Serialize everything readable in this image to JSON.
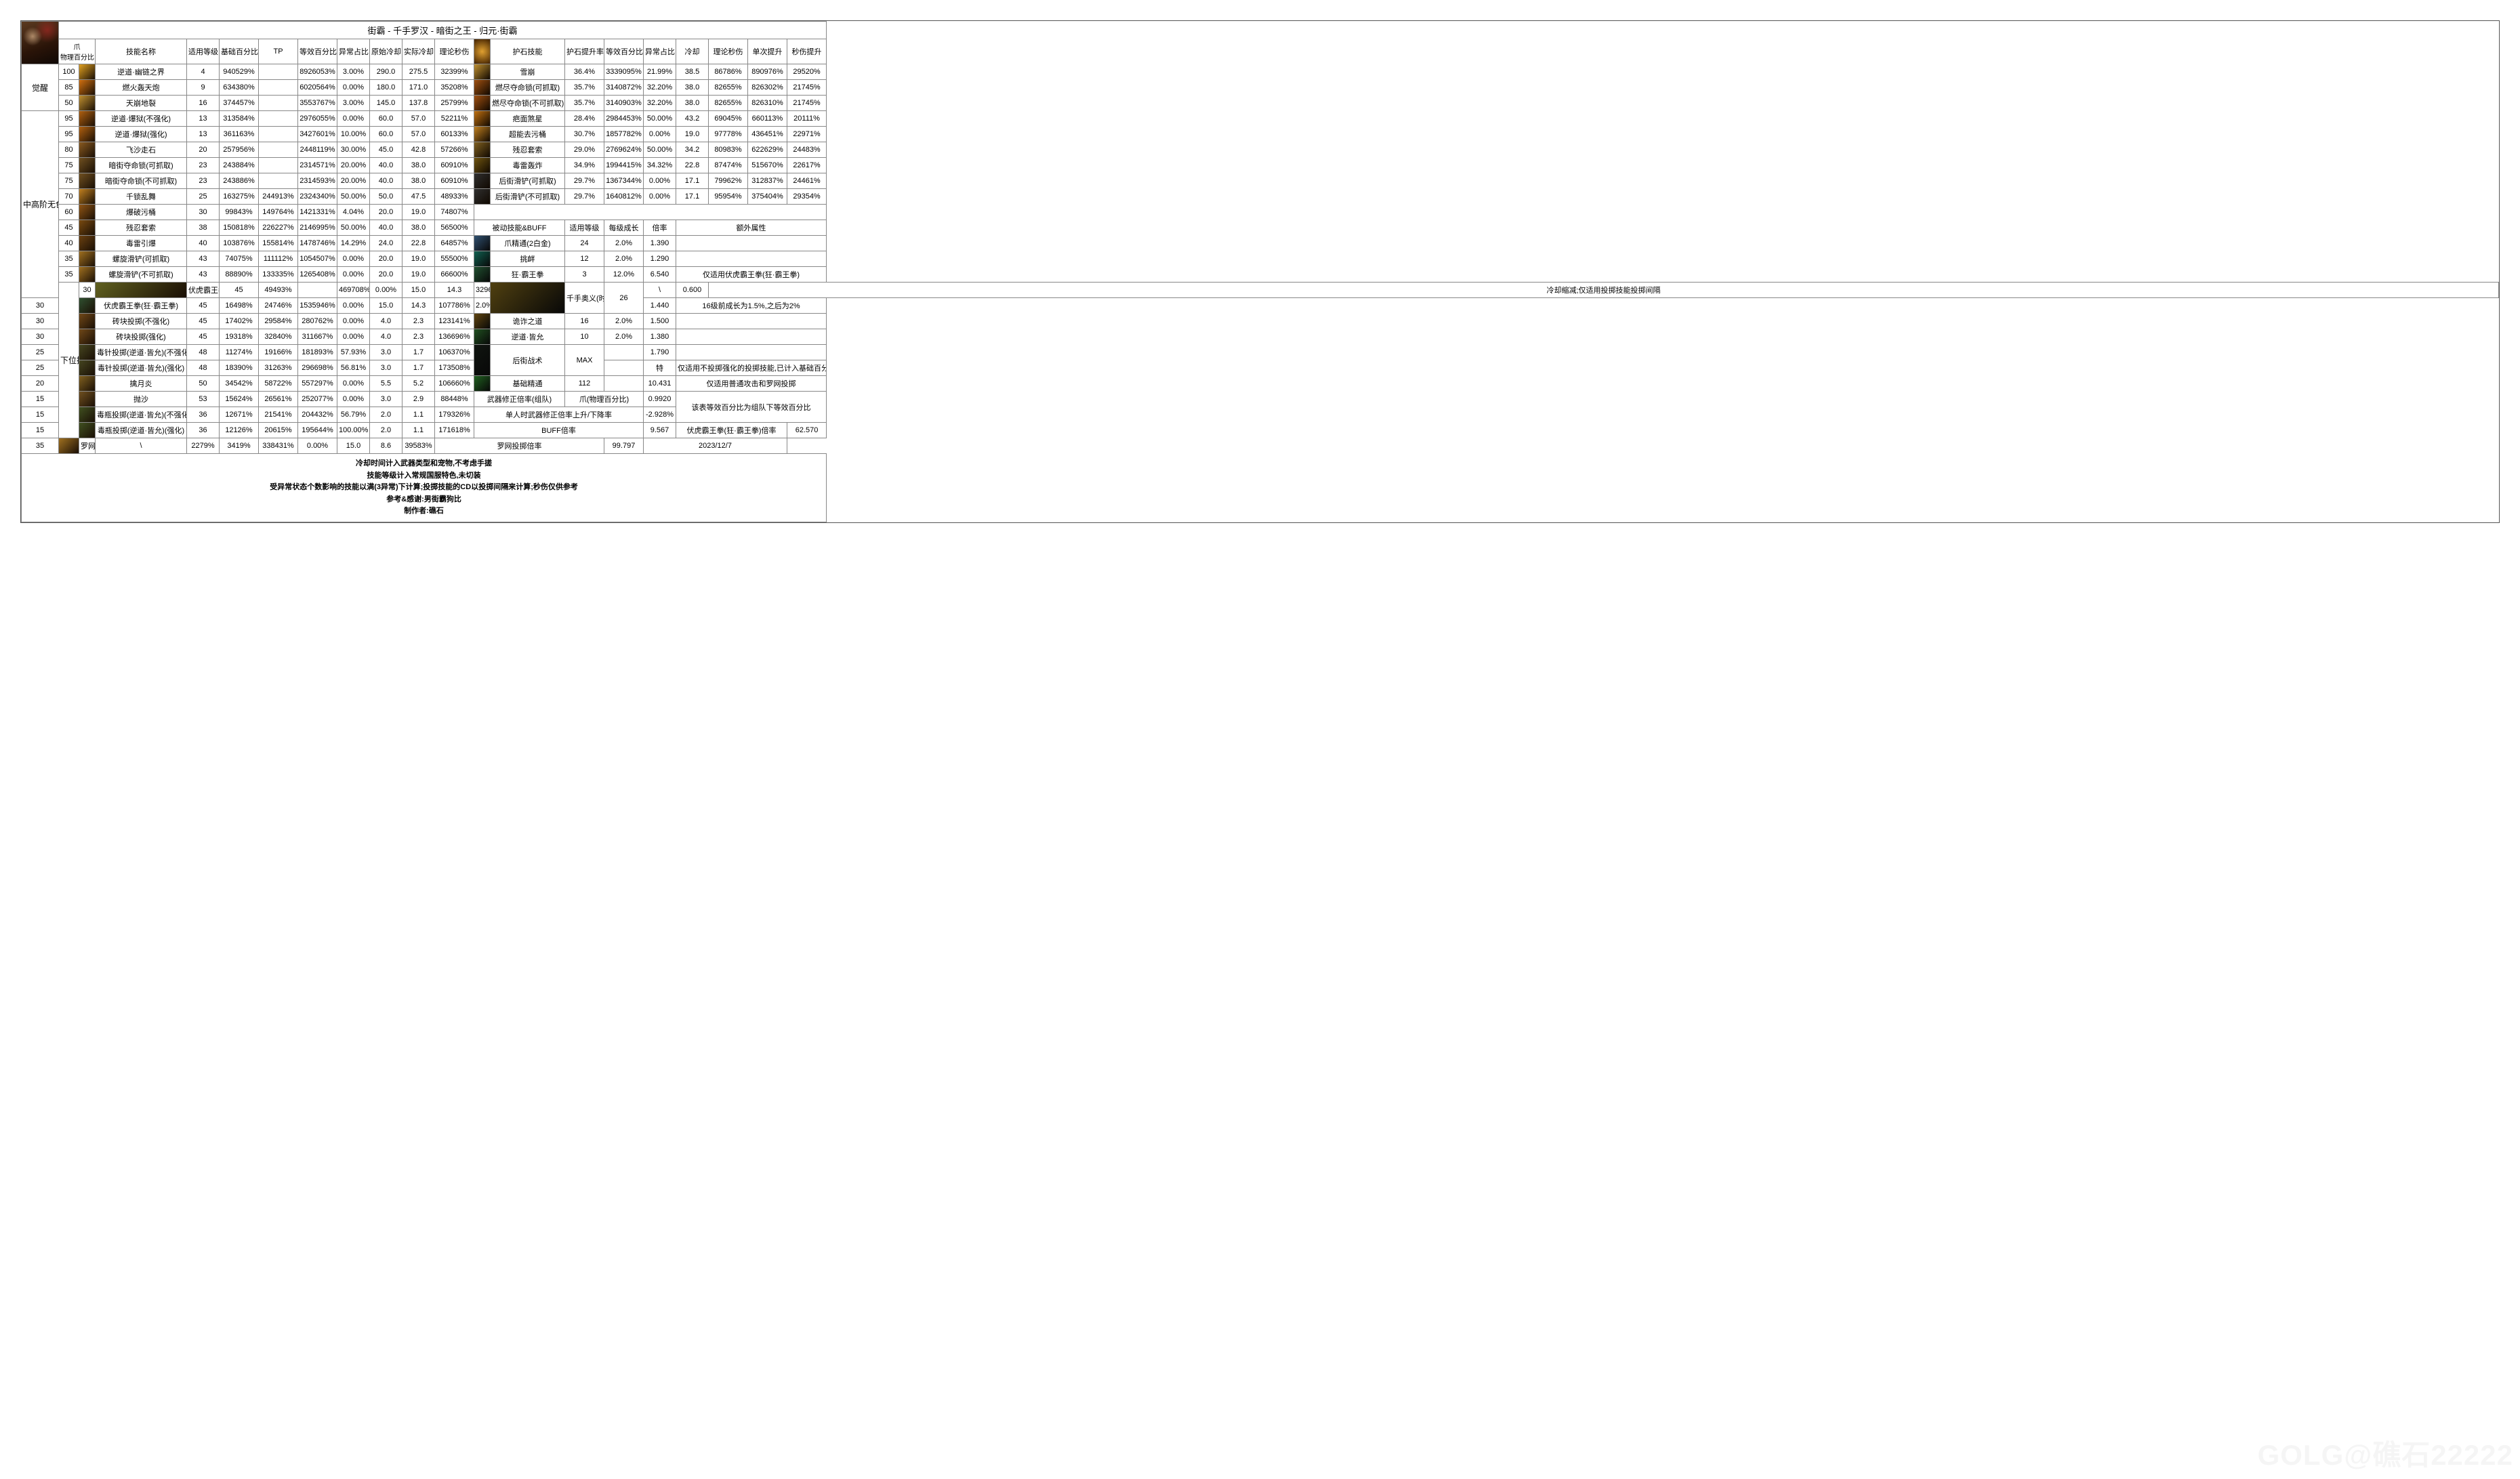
{
  "title": "街霸 - 千手罗汉 - 暗街之王 - 归元·街霸",
  "h_left": {
    "claw": "爪",
    "phys": "物理百分比",
    "name": "技能名称",
    "lvl": "适用等级",
    "base": "基础百分比",
    "tp": "TP",
    "eff": "等效百分比",
    "abn": "异常占比",
    "ocd": "原始冷却",
    "acd": "实际冷却",
    "dps": "理论秒伤"
  },
  "h_right": {
    "pname": "护石技能",
    "boost": "护石提升率",
    "eff": "等效百分比",
    "abn": "异常占比",
    "cd": "冷却",
    "dps": "理论秒伤",
    "single": "单次提升",
    "dpsup": "秒伤提升"
  },
  "cats": {
    "awaken": "觉醒",
    "mid": "中高阶无色",
    "low": "下位技能"
  },
  "L": [
    {
      "cat": "awaken",
      "span": 3,
      "lv": "100",
      "ic": "#e0a020",
      "name": "逆道·幽链之界",
      "lvl": "4",
      "base": "940529%",
      "tp": "",
      "eff": "8926053%",
      "abn": "3.00%",
      "ocd": "290.0",
      "acd": "275.5",
      "dps": "32399%"
    },
    {
      "lv": "85",
      "ic": "#d07010",
      "name": "燃火轰天炮",
      "lvl": "9",
      "base": "634380%",
      "tp": "",
      "eff": "6020564%",
      "abn": "0.00%",
      "ocd": "180.0",
      "acd": "171.0",
      "dps": "35208%"
    },
    {
      "lv": "50",
      "ic": "#c09030",
      "name": "天崩地裂",
      "lvl": "16",
      "base": "374457%",
      "tp": "",
      "eff": "3553767%",
      "abn": "3.00%",
      "ocd": "145.0",
      "acd": "137.8",
      "dps": "25799%"
    },
    {
      "cat": "mid",
      "span": 12,
      "lv": "95",
      "ic": "#b06010",
      "name": "逆道·爆狱(不强化)",
      "lvl": "13",
      "base": "313584%",
      "tp": "",
      "eff": "2976055%",
      "abn": "0.00%",
      "ocd": "60.0",
      "acd": "57.0",
      "dps": "52211%"
    },
    {
      "lv": "95",
      "ic": "#b06010",
      "name": "逆道·爆狱(强化)",
      "lvl": "13",
      "base": "361163%",
      "tp": "",
      "eff": "3427601%",
      "abn": "10.00%",
      "ocd": "60.0",
      "acd": "57.0",
      "dps": "60133%"
    },
    {
      "lv": "80",
      "ic": "#8a5a20",
      "name": "飞沙走石",
      "lvl": "20",
      "base": "257956%",
      "tp": "",
      "eff": "2448119%",
      "abn": "30.00%",
      "ocd": "45.0",
      "acd": "42.8",
      "dps": "57266%"
    },
    {
      "lv": "75",
      "ic": "#705020",
      "name": "暗街夺命锁(可抓取)",
      "lvl": "23",
      "base": "243884%",
      "tp": "",
      "eff": "2314571%",
      "abn": "20.00%",
      "ocd": "40.0",
      "acd": "38.0",
      "dps": "60910%"
    },
    {
      "lv": "75",
      "ic": "#705020",
      "name": "暗街夺命锁(不可抓取)",
      "lvl": "23",
      "base": "243886%",
      "tp": "",
      "eff": "2314593%",
      "abn": "20.00%",
      "ocd": "40.0",
      "acd": "38.0",
      "dps": "60910%"
    },
    {
      "lv": "70",
      "ic": "#c08020",
      "name": "千锁乱舞",
      "lvl": "25",
      "base": "163275%",
      "tp": "244913%",
      "eff": "2324340%",
      "abn": "50.00%",
      "ocd": "50.0",
      "acd": "47.5",
      "dps": "48933%"
    },
    {
      "lv": "60",
      "ic": "#905515",
      "name": "爆破污桶",
      "lvl": "30",
      "base": "99843%",
      "tp": "149764%",
      "eff": "1421331%",
      "abn": "4.04%",
      "ocd": "20.0",
      "acd": "19.0",
      "dps": "74807%"
    },
    {
      "lv": "45",
      "ic": "#7a4a10",
      "name": "残忍套索",
      "lvl": "38",
      "base": "150818%",
      "tp": "226227%",
      "eff": "2146995%",
      "abn": "50.00%",
      "ocd": "40.0",
      "acd": "38.0",
      "dps": "56500%"
    },
    {
      "lv": "40",
      "ic": "#6a4010",
      "name": "毒雷引爆",
      "lvl": "40",
      "base": "103876%",
      "tp": "155814%",
      "eff": "1478746%",
      "abn": "14.29%",
      "ocd": "24.0",
      "acd": "22.8",
      "dps": "64857%"
    },
    {
      "lv": "35",
      "ic": "#a07020",
      "name": "螺旋滑铲(可抓取)",
      "lvl": "43",
      "base": "74075%",
      "tp": "111112%",
      "eff": "1054507%",
      "abn": "0.00%",
      "ocd": "20.0",
      "acd": "19.0",
      "dps": "55500%"
    },
    {
      "lv": "35",
      "ic": "#a07020",
      "name": "螺旋滑铲(不可抓取)",
      "lvl": "43",
      "base": "88890%",
      "tp": "133335%",
      "eff": "1265408%",
      "abn": "0.00%",
      "ocd": "20.0",
      "acd": "19.0",
      "dps": "66600%"
    },
    {
      "cat": "low",
      "span": 10,
      "lv": "30",
      "ic": "#606020",
      "name": "伏虎霸王拳",
      "lvl": "45",
      "base": "49493%",
      "tp": "",
      "eff": "469708%",
      "abn": "0.00%",
      "ocd": "15.0",
      "acd": "14.3",
      "dps": "32962%"
    },
    {
      "lv": "30",
      "ic": "#305030",
      "name": "伏虎霸王拳(狂·霸王拳)",
      "lvl": "45",
      "base": "16498%",
      "tp": "24746%",
      "eff": "1535946%",
      "abn": "0.00%",
      "ocd": "15.0",
      "acd": "14.3",
      "dps": "107786%"
    },
    {
      "lv": "30",
      "ic": "#704818",
      "name": "砖块投掷(不强化)",
      "lvl": "45",
      "base": "17402%",
      "tp": "29584%",
      "eff": "280762%",
      "abn": "0.00%",
      "ocd": "4.0",
      "acd": "2.3",
      "dps": "123141%"
    },
    {
      "lv": "30",
      "ic": "#704818",
      "name": "砖块投掷(强化)",
      "lvl": "45",
      "base": "19318%",
      "tp": "32840%",
      "eff": "311667%",
      "abn": "0.00%",
      "ocd": "4.0",
      "acd": "2.3",
      "dps": "136696%"
    },
    {
      "lv": "25",
      "ic": "#454520",
      "name": "毒针投掷(逆道·皆允)(不强化)",
      "lvl": "48",
      "base": "11274%",
      "tp": "19166%",
      "eff": "181893%",
      "abn": "57.93%",
      "ocd": "3.0",
      "acd": "1.7",
      "dps": "106370%"
    },
    {
      "lv": "25",
      "ic": "#454520",
      "name": "毒针投掷(逆道·皆允)(强化)",
      "lvl": "48",
      "base": "18390%",
      "tp": "31263%",
      "eff": "296698%",
      "abn": "56.81%",
      "ocd": "3.0",
      "acd": "1.7",
      "dps": "173508%"
    },
    {
      "lv": "20",
      "ic": "#806020",
      "name": "擒月炎",
      "lvl": "50",
      "base": "34542%",
      "tp": "58722%",
      "eff": "557297%",
      "abn": "0.00%",
      "ocd": "5.5",
      "acd": "5.2",
      "dps": "106660%"
    },
    {
      "lv": "15",
      "ic": "#705020",
      "name": "抛沙",
      "lvl": "53",
      "base": "15624%",
      "tp": "26561%",
      "eff": "252077%",
      "abn": "0.00%",
      "ocd": "3.0",
      "acd": "2.9",
      "dps": "88448%"
    },
    {
      "lv": "15",
      "ic": "#405020",
      "name": "毒瓶投掷(逆道·皆允)(不强化)",
      "lvl": "36",
      "base": "12671%",
      "tp": "21541%",
      "eff": "204432%",
      "abn": "56.79%",
      "ocd": "2.0",
      "acd": "1.1",
      "dps": "179326%"
    },
    {
      "lv": "15",
      "ic": "#405020",
      "name": "毒瓶投掷(逆道·皆允)(强化)",
      "lvl": "36",
      "base": "12126%",
      "tp": "20615%",
      "eff": "195644%",
      "abn": "100.00%",
      "ocd": "2.0",
      "acd": "1.1",
      "dps": "171618%"
    },
    {
      "lv": "35",
      "ic": "#a07020",
      "name": "罗网投掷",
      "lvl": "\\",
      "base": "2279%",
      "tp": "3419%",
      "eff": "338431%",
      "abn": "0.00%",
      "ocd": "15.0",
      "acd": "8.6",
      "dps": "39583%"
    }
  ],
  "R": [
    {
      "ic": "#c09030",
      "name": "雪崩",
      "boost": "36.4%",
      "eff": "3339095%",
      "abn": "21.99%",
      "cd": "38.5",
      "dps": "86786%",
      "single": "890976%",
      "dpsup": "29520%"
    },
    {
      "ic": "#a05010",
      "name": "燃尽夺命锁(可抓取)",
      "boost": "35.7%",
      "eff": "3140872%",
      "abn": "32.20%",
      "cd": "38.0",
      "dps": "82655%",
      "single": "826302%",
      "dpsup": "21745%"
    },
    {
      "ic": "#a05010",
      "name": "燃尽夺命锁(不可抓取)",
      "boost": "35.7%",
      "eff": "3140903%",
      "abn": "32.20%",
      "cd": "38.0",
      "dps": "82655%",
      "single": "826310%",
      "dpsup": "21745%"
    },
    {
      "ic": "#c07010",
      "name": "疤面煞星",
      "boost": "28.4%",
      "eff": "2984453%",
      "abn": "50.00%",
      "cd": "43.2",
      "dps": "69045%",
      "single": "660113%",
      "dpsup": "20111%"
    },
    {
      "ic": "#c08020",
      "name": "超能去污桶",
      "boost": "30.7%",
      "eff": "1857782%",
      "abn": "0.00%",
      "cd": "19.0",
      "dps": "97778%",
      "single": "436451%",
      "dpsup": "22971%"
    },
    {
      "ic": "#806020",
      "name": "残忍套索",
      "boost": "29.0%",
      "eff": "2769624%",
      "abn": "50.00%",
      "cd": "34.2",
      "dps": "80983%",
      "single": "622629%",
      "dpsup": "24483%"
    },
    {
      "ic": "#705510",
      "name": "毒雷轰炸",
      "boost": "34.9%",
      "eff": "1994415%",
      "abn": "34.32%",
      "cd": "22.8",
      "dps": "87474%",
      "single": "515670%",
      "dpsup": "22617%"
    },
    {
      "ic": "#303030",
      "name": "后街滑铲(可抓取)",
      "boost": "29.7%",
      "eff": "1367344%",
      "abn": "0.00%",
      "cd": "17.1",
      "dps": "79962%",
      "single": "312837%",
      "dpsup": "24461%"
    },
    {
      "ic": "#303030",
      "name": "后街滑铲(不可抓取)",
      "boost": "29.7%",
      "eff": "1640812%",
      "abn": "0.00%",
      "cd": "17.1",
      "dps": "95954%",
      "single": "375404%",
      "dpsup": "29354%"
    }
  ],
  "buff_header": {
    "name": "被动技能&BUFF",
    "lvl": "适用等级",
    "grow": "每级成长",
    "rate": "倍率",
    "extra": "额外属性"
  },
  "B": [
    {
      "ic": "#305070",
      "name": "爪精通(2白金)",
      "lvl": "24",
      "grow": "2.0%",
      "rate": "1.390",
      "extra": ""
    },
    {
      "ic": "#106050",
      "name": "挑衅",
      "lvl": "12",
      "grow": "2.0%",
      "rate": "1.290",
      "extra": ""
    },
    {
      "ic": "#205030",
      "name": "狂·霸王拳",
      "lvl": "3",
      "grow": "12.0%",
      "rate": "6.540",
      "extra": "仅适用伏虎霸王拳(狂·霸王拳)"
    },
    {
      "ic": "#504010",
      "name": "千手奥义(时装)",
      "lvl": "26",
      "span": 2,
      "grow": "\\",
      "rate": "0.600",
      "extra": "冷却缩减;仅适用投掷技能投掷间隔"
    },
    {
      "grow": "2.0%",
      "rate": "1.440",
      "extra": "16级前成长为1.5%,之后为2%"
    },
    {
      "ic": "#604510",
      "name": "诡诈之道",
      "lvl": "16",
      "grow": "2.0%",
      "rate": "1.500",
      "extra": ""
    },
    {
      "ic": "#205020",
      "name": "逆道·皆允",
      "lvl": "10",
      "grow": "2.0%",
      "rate": "1.380",
      "extra": ""
    },
    {
      "ic": "#101510",
      "name": "后街战术",
      "lvl": "MAX",
      "span": 2,
      "grow": "",
      "rate": "1.790",
      "extra": ""
    },
    {
      "grow": "",
      "rate": "特",
      "extra": "仅适用不投掷强化的投掷技能,已计入基础百分比"
    },
    {
      "ic": "#206020",
      "name": "基础精通",
      "lvl": "112",
      "grow": "",
      "rate": "10.431",
      "extra": "仅适用普通攻击和罗网投掷"
    }
  ],
  "bot": {
    "wpn_team": "武器修正倍率(组队)",
    "wpn_team_v1": "爪(物理百分比)",
    "wpn_team_v2": "0.9920",
    "wpn_note": "该表等效百分比为组队下等效百分比",
    "single": "单人时武器修正倍率上升/下降率",
    "single_v": "-2.928%",
    "buffrate": "BUFF倍率",
    "buffrate_v": "9.567",
    "fist": "伏虎霸王拳(狂·霸王拳)倍率",
    "fist_v": "62.570",
    "net": "罗网投掷倍率",
    "net_v": "99.797",
    "date": "2023/12/7"
  },
  "footer": [
    "冷却时间计入武器类型和宠物,不考虑手搓",
    "技能等级计入常规国服特色,未切装",
    "受异常状态个数影响的技能以满(3异常)下计算;投掷技能的CD以投掷间隔来计算;秒伤仅供参考",
    "参考&感谢:男街霸狗比",
    "制作者:礁石"
  ],
  "watermark": "GOLG@礁石22222"
}
